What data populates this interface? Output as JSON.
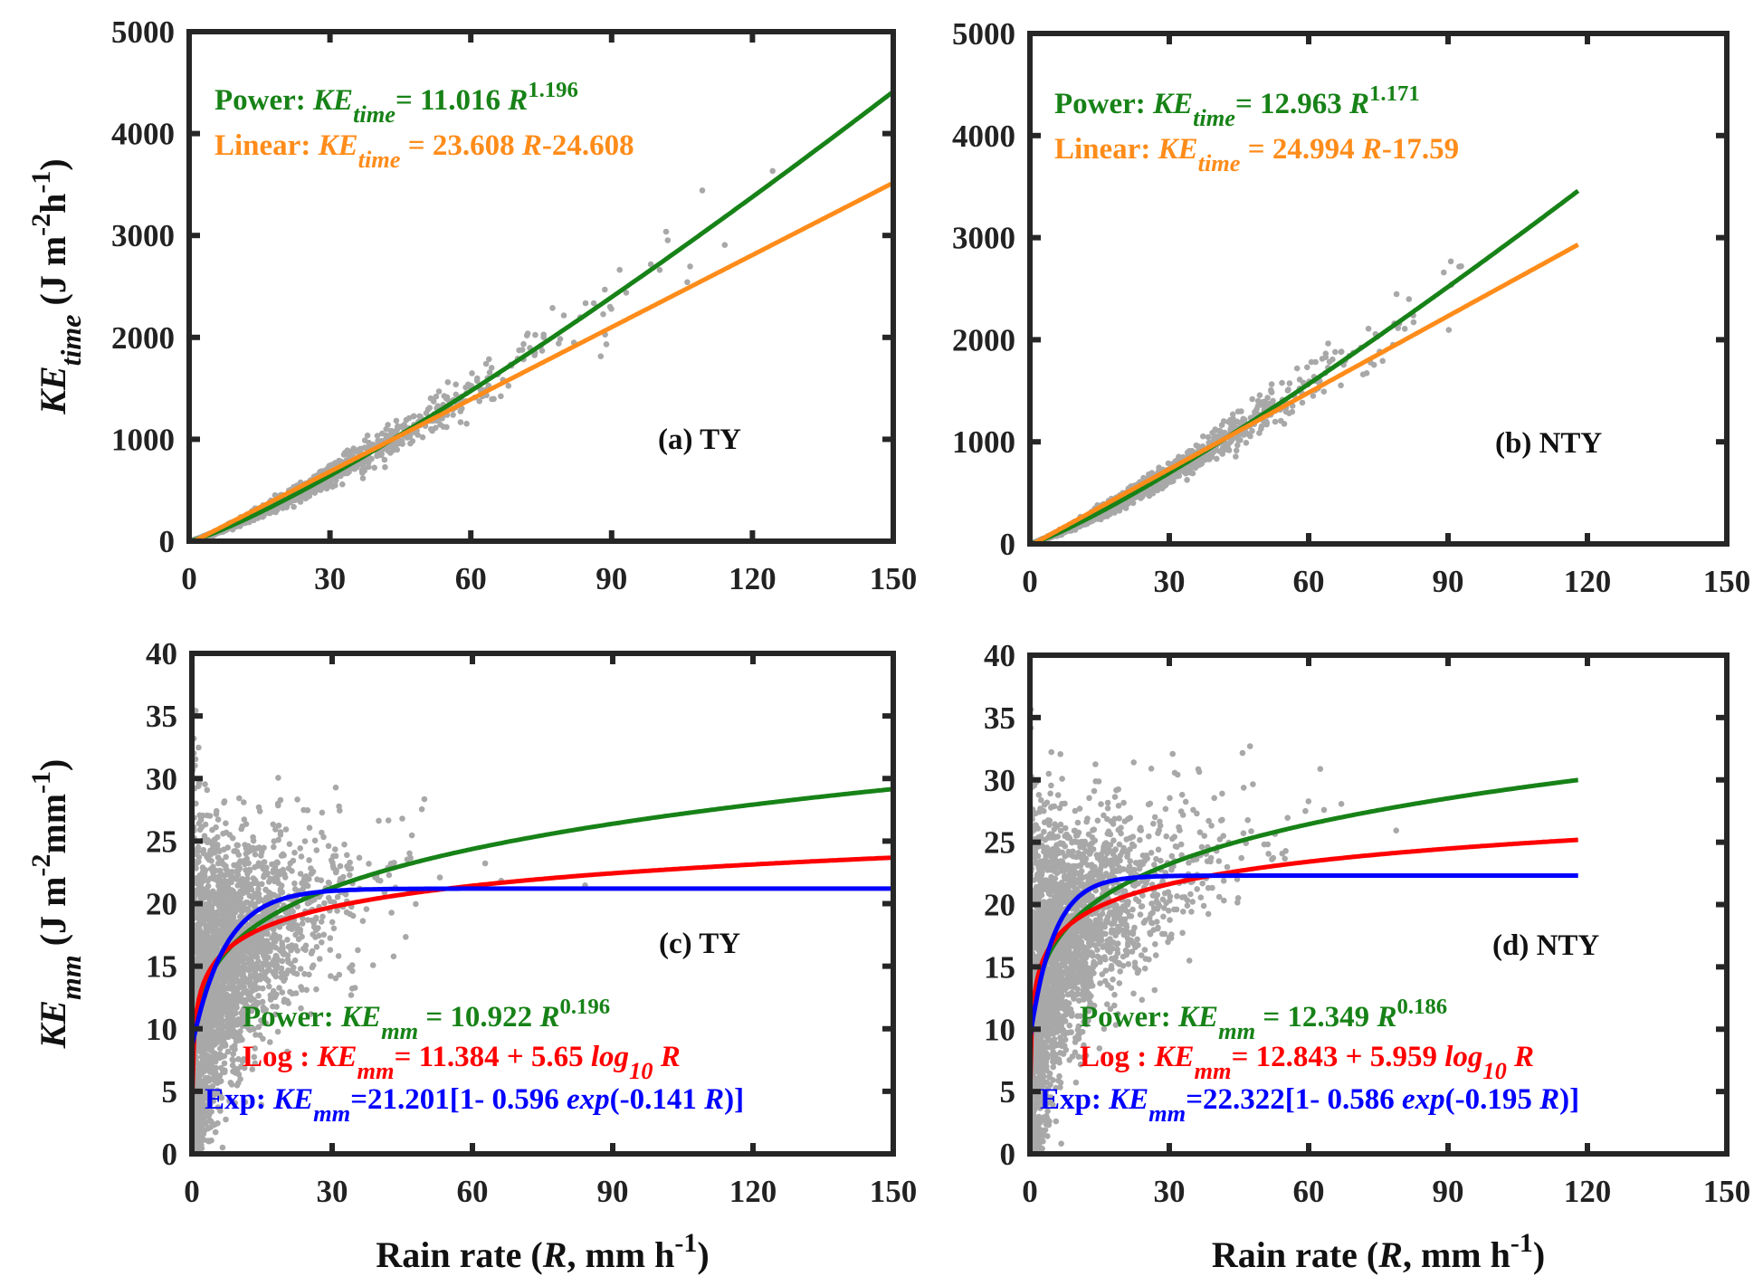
{
  "colors": {
    "power": "#178217",
    "linear": "#ff8c1a",
    "log": "#ff0000",
    "exp": "#0000ff",
    "points": "#a8a8a8",
    "axis": "#262626"
  },
  "chart_data": [
    {
      "panel": "a",
      "type": "scatter",
      "label": "(a) TY",
      "xlim": [
        0,
        150
      ],
      "ylim": [
        0,
        5000
      ],
      "xticks": [
        0,
        30,
        60,
        90,
        120,
        150
      ],
      "yticks": [
        0,
        1000,
        2000,
        3000,
        4000,
        5000
      ],
      "ylabel": [
        {
          "t": "KE",
          "s": "i"
        },
        {
          "t": "time",
          "s": "isub"
        },
        {
          "t": " (J m",
          "s": ""
        },
        {
          "t": "-2",
          "s": "sup"
        },
        {
          "t": "h",
          "s": ""
        },
        {
          "t": "-1",
          "s": "sup"
        },
        {
          "t": ")",
          "s": ""
        }
      ],
      "xlabel": [],
      "r_max": 150,
      "fits": [
        {
          "name": "Power",
          "model": "power",
          "a": 11.016,
          "b": 1.196,
          "color": "power",
          "text": [
            {
              "t": "Power:  ",
              "s": ""
            },
            {
              "t": "KE",
              "s": "i"
            },
            {
              "t": "time",
              "s": "isub"
            },
            {
              "t": "= 11.016 ",
              "s": ""
            },
            {
              "t": "R",
              "s": "i"
            },
            {
              "t": "1.196",
              "s": "sup"
            }
          ]
        },
        {
          "name": "Linear",
          "model": "linear",
          "a": 23.608,
          "b": -24.608,
          "color": "linear",
          "text": [
            {
              "t": "Linear:  ",
              "s": ""
            },
            {
              "t": "KE",
              "s": "i"
            },
            {
              "t": "time",
              "s": "isub"
            },
            {
              "t": " = 23.608 ",
              "s": ""
            },
            {
              "t": "R",
              "s": "i"
            },
            {
              "t": "-24.608",
              "s": ""
            }
          ]
        }
      ]
    },
    {
      "panel": "b",
      "type": "scatter",
      "label": "(b) NTY",
      "xlim": [
        0,
        150
      ],
      "ylim": [
        0,
        5000
      ],
      "xticks": [
        0,
        30,
        60,
        90,
        120,
        150
      ],
      "yticks": [
        0,
        1000,
        2000,
        3000,
        4000,
        5000
      ],
      "ylabel": [],
      "xlabel": [],
      "r_max": 118,
      "fits": [
        {
          "name": "Power",
          "model": "power",
          "a": 12.963,
          "b": 1.171,
          "color": "power",
          "text": [
            {
              "t": "Power:  ",
              "s": ""
            },
            {
              "t": "KE",
              "s": "i"
            },
            {
              "t": "time",
              "s": "isub"
            },
            {
              "t": "= 12.963 ",
              "s": ""
            },
            {
              "t": "R",
              "s": "i"
            },
            {
              "t": "1.171",
              "s": "sup"
            }
          ]
        },
        {
          "name": "Linear",
          "model": "linear",
          "a": 24.994,
          "b": -17.59,
          "color": "linear",
          "text": [
            {
              "t": "Linear:  ",
              "s": ""
            },
            {
              "t": "KE",
              "s": "i"
            },
            {
              "t": "time",
              "s": "isub"
            },
            {
              "t": " = 24.994 ",
              "s": ""
            },
            {
              "t": "R",
              "s": "i"
            },
            {
              "t": "-17.59",
              "s": ""
            }
          ]
        }
      ]
    },
    {
      "panel": "c",
      "type": "scatter",
      "label": "(c) TY",
      "xlim": [
        0,
        150
      ],
      "ylim": [
        0,
        40
      ],
      "xticks": [
        0,
        30,
        60,
        90,
        120,
        150
      ],
      "yticks": [
        0,
        5,
        10,
        15,
        20,
        25,
        30,
        35,
        40
      ],
      "ylabel": [
        {
          "t": "KE",
          "s": "i"
        },
        {
          "t": "mm",
          "s": "isub"
        },
        {
          "t": " (J m",
          "s": ""
        },
        {
          "t": "-2",
          "s": "sup"
        },
        {
          "t": "mm",
          "s": ""
        },
        {
          "t": "-1",
          "s": "sup"
        },
        {
          "t": ")",
          "s": ""
        }
      ],
      "xlabel": [
        {
          "t": "Rain rate (",
          "s": ""
        },
        {
          "t": "R",
          "s": "i"
        },
        {
          "t": ", mm h",
          "s": ""
        },
        {
          "t": "-1",
          "s": "sup"
        },
        {
          "t": ")",
          "s": ""
        }
      ],
      "r_max": 150,
      "fits": [
        {
          "name": "Power",
          "model": "power",
          "a": 10.922,
          "b": 0.196,
          "color": "power",
          "text": [
            {
              "t": "Power:  ",
              "s": ""
            },
            {
              "t": "KE",
              "s": "i"
            },
            {
              "t": "mm",
              "s": "isub"
            },
            {
              "t": " = 10.922 ",
              "s": ""
            },
            {
              "t": "R",
              "s": "i"
            },
            {
              "t": "0.196",
              "s": "sup"
            }
          ]
        },
        {
          "name": "Log",
          "model": "log",
          "a": 11.384,
          "b": 5.65,
          "color": "log",
          "text": [
            {
              "t": "Log :  ",
              "s": ""
            },
            {
              "t": "KE",
              "s": "i"
            },
            {
              "t": "mm",
              "s": "isub"
            },
            {
              "t": "= 11.384 + 5.65 ",
              "s": ""
            },
            {
              "t": "log",
              "s": "i"
            },
            {
              "t": "10",
              "s": "isub"
            },
            {
              "t": " R",
              "s": "i"
            }
          ]
        },
        {
          "name": "Exp",
          "model": "exp",
          "a": 21.201,
          "b": 0.596,
          "c": 0.141,
          "color": "exp",
          "text": [
            {
              "t": "Exp:  ",
              "s": ""
            },
            {
              "t": "KE",
              "s": "i"
            },
            {
              "t": "mm",
              "s": "isub"
            },
            {
              "t": "=21.201[1- 0.596 ",
              "s": ""
            },
            {
              "t": "exp",
              "s": "i"
            },
            {
              "t": "(-0.141 ",
              "s": ""
            },
            {
              "t": "R",
              "s": "i"
            },
            {
              "t": ")]",
              "s": ""
            }
          ]
        }
      ]
    },
    {
      "panel": "d",
      "type": "scatter",
      "label": "(d) NTY",
      "xlim": [
        0,
        150
      ],
      "ylim": [
        0,
        40
      ],
      "xticks": [
        0,
        30,
        60,
        90,
        120,
        150
      ],
      "yticks": [
        0,
        5,
        10,
        15,
        20,
        25,
        30,
        35,
        40
      ],
      "ylabel": [],
      "xlabel": [
        {
          "t": "Rain rate (",
          "s": ""
        },
        {
          "t": "R",
          "s": "i"
        },
        {
          "t": ", mm h",
          "s": ""
        },
        {
          "t": "-1",
          "s": "sup"
        },
        {
          "t": ")",
          "s": ""
        }
      ],
      "r_max": 118,
      "fits": [
        {
          "name": "Power",
          "model": "power",
          "a": 12.349,
          "b": 0.186,
          "color": "power",
          "text": [
            {
              "t": "Power:  ",
              "s": ""
            },
            {
              "t": "KE",
              "s": "i"
            },
            {
              "t": "mm",
              "s": "isub"
            },
            {
              "t": " = 12.349 ",
              "s": ""
            },
            {
              "t": "R",
              "s": "i"
            },
            {
              "t": "0.186",
              "s": "sup"
            }
          ]
        },
        {
          "name": "Log",
          "model": "log",
          "a": 12.843,
          "b": 5.959,
          "color": "log",
          "text": [
            {
              "t": "Log :  ",
              "s": ""
            },
            {
              "t": "KE",
              "s": "i"
            },
            {
              "t": "mm",
              "s": "isub"
            },
            {
              "t": "= 12.843 + 5.959 ",
              "s": ""
            },
            {
              "t": "log",
              "s": "i"
            },
            {
              "t": "10",
              "s": "isub"
            },
            {
              "t": " R",
              "s": "i"
            }
          ]
        },
        {
          "name": "Exp",
          "model": "exp",
          "a": 22.322,
          "b": 0.586,
          "c": 0.195,
          "color": "exp",
          "text": [
            {
              "t": "Exp:  ",
              "s": ""
            },
            {
              "t": "KE",
              "s": "i"
            },
            {
              "t": "mm",
              "s": "isub"
            },
            {
              "t": "=22.322[1- 0.586 ",
              "s": ""
            },
            {
              "t": "exp",
              "s": "i"
            },
            {
              "t": "(-0.195 ",
              "s": ""
            },
            {
              "t": "R",
              "s": "i"
            },
            {
              "t": ")]",
              "s": ""
            }
          ]
        }
      ]
    }
  ]
}
